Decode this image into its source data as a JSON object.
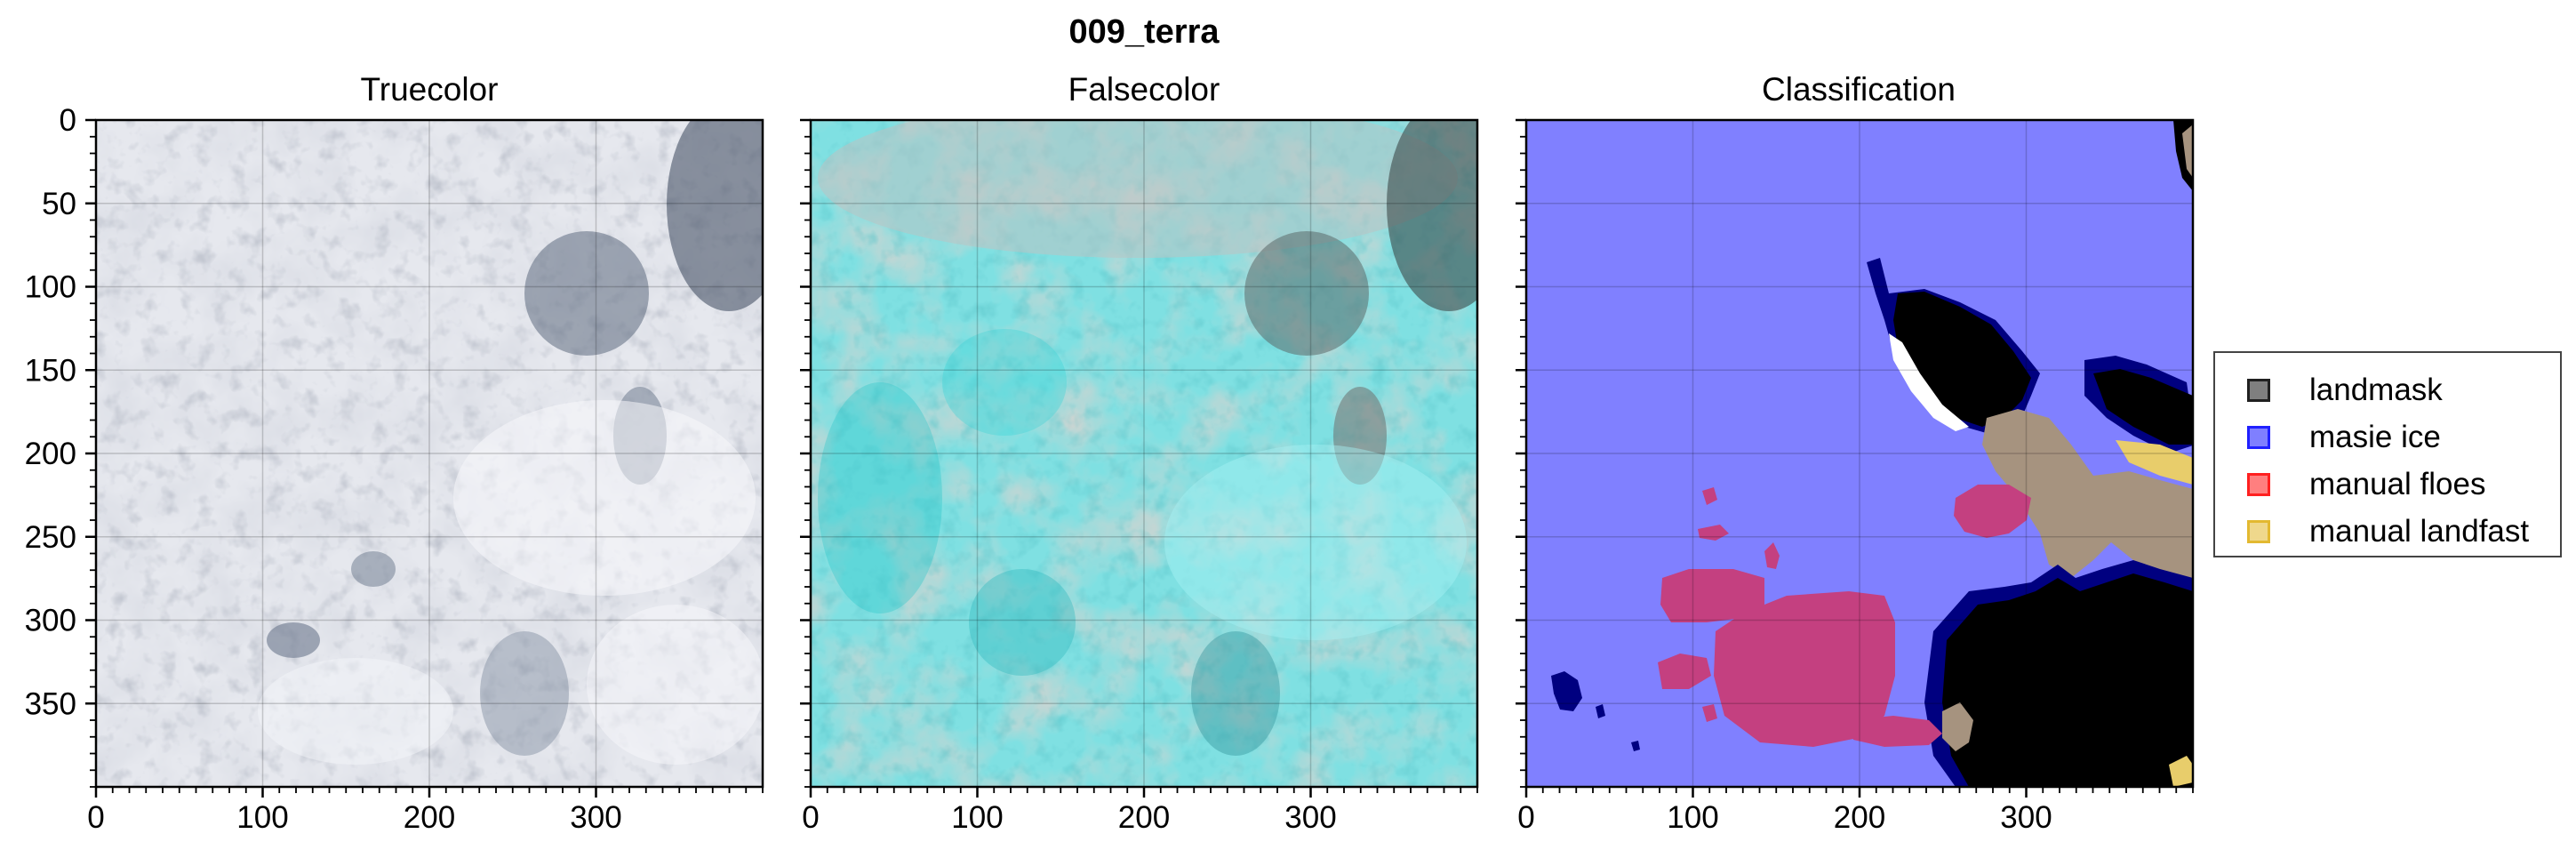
{
  "chart_data": {
    "type": "image",
    "suptitle": "009_terra",
    "panels": [
      {
        "title": "Truecolor",
        "kind": "truecolor"
      },
      {
        "title": "Falsecolor",
        "kind": "falsecolor"
      },
      {
        "title": "Classification",
        "kind": "classification"
      }
    ],
    "xlim": [
      0,
      400
    ],
    "ylim": [
      400,
      0
    ],
    "xticks": [
      0,
      100,
      200,
      300
    ],
    "yticks": [
      0,
      50,
      100,
      150,
      200,
      250,
      300,
      350
    ],
    "grid": true,
    "legend": {
      "placement": "right",
      "entries": [
        {
          "label": "landmask",
          "color": "#000000"
        },
        {
          "label": "masie ice",
          "color": "#0000ff"
        },
        {
          "label": "manual floes",
          "color": "#ff0000"
        },
        {
          "label": "manual landfast",
          "color": "#e0b21a"
        }
      ]
    }
  }
}
